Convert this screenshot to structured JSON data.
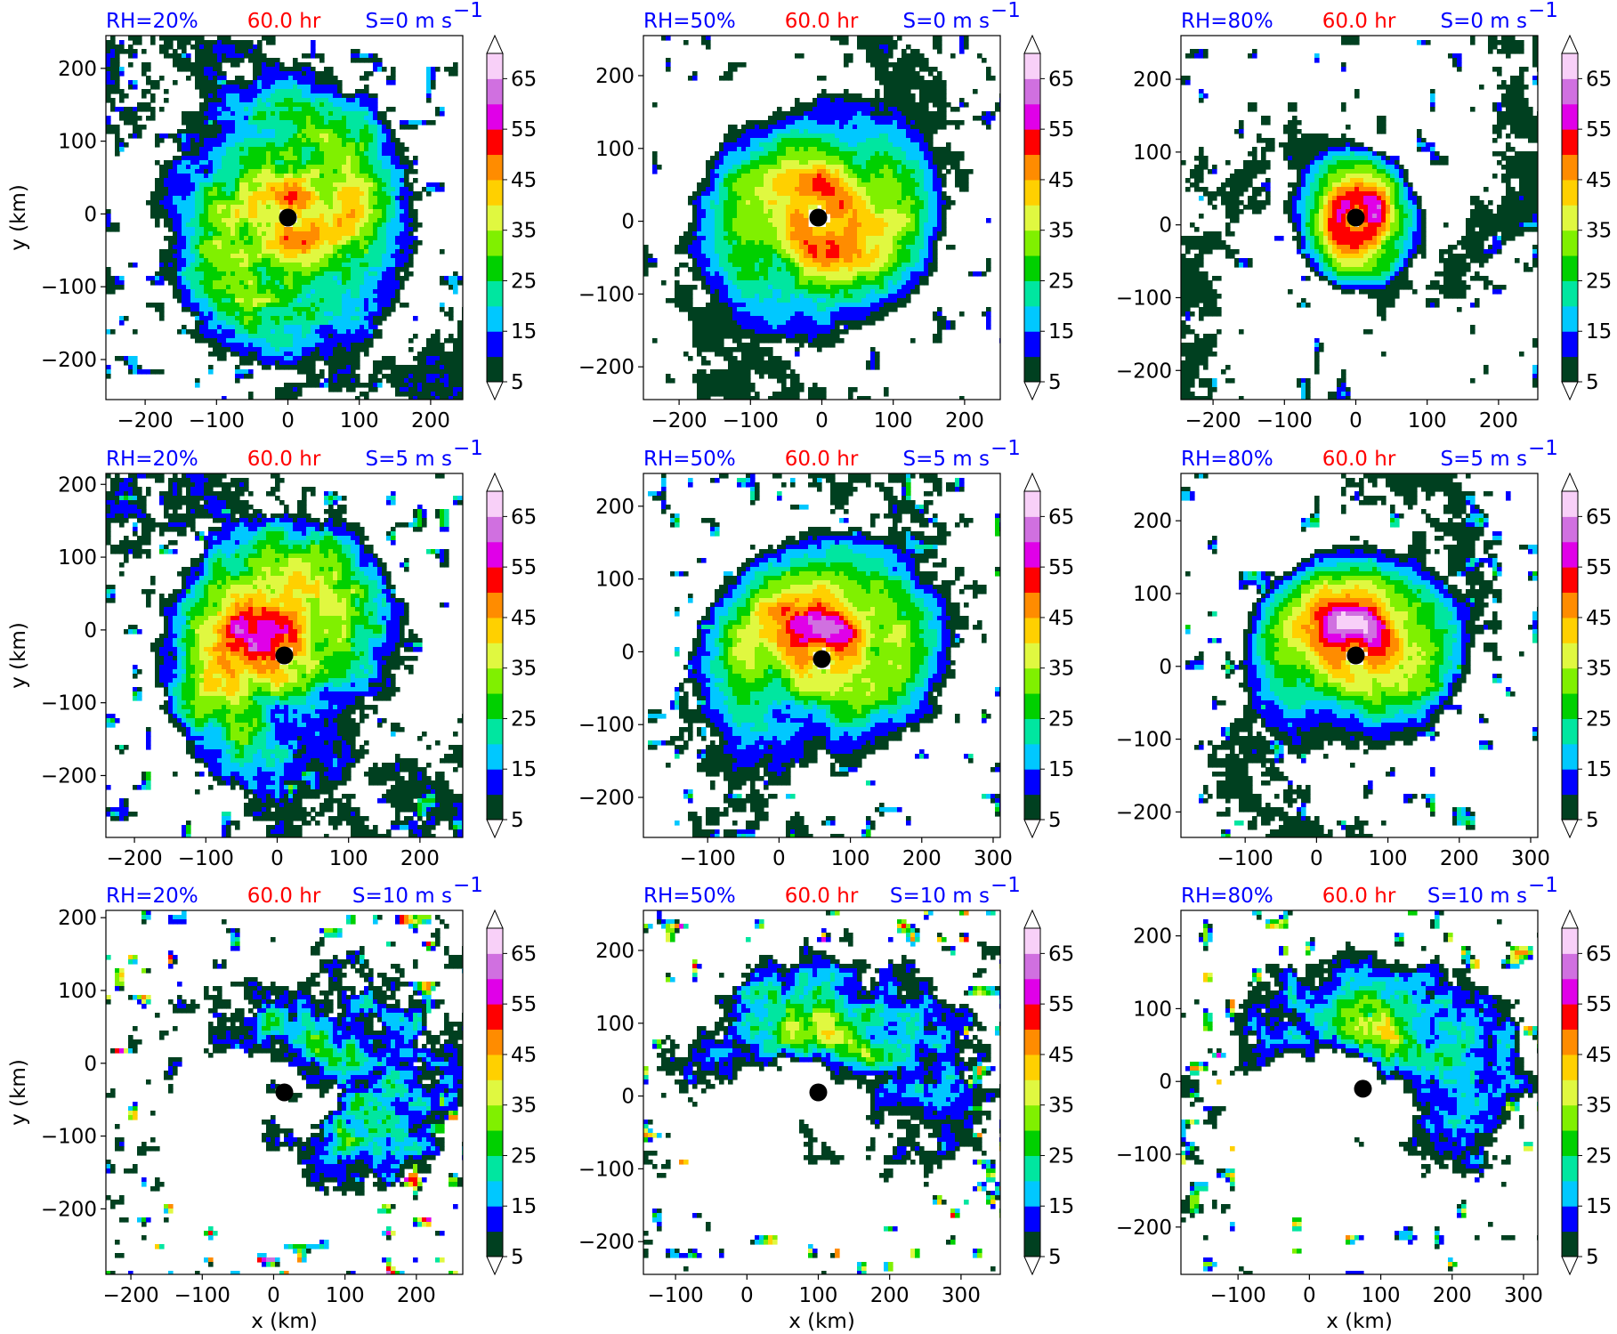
{
  "figure": {
    "common": {
      "time_label": "60.0 hr",
      "xlabel": "x (km)",
      "ylabel": "y (km)"
    },
    "colors": {
      "rh_text": "#0000ff",
      "time_text": "#ff0000",
      "shear_text": "#0000ff",
      "eye_marker": "#000000"
    },
    "colorbar": {
      "levels": [
        5,
        10,
        15,
        20,
        25,
        30,
        35,
        40,
        45,
        50,
        55,
        60,
        65,
        70
      ],
      "colors": [
        "#004020",
        "#0000ff",
        "#00c8ff",
        "#00e6a0",
        "#00d000",
        "#80f000",
        "#e0f840",
        "#ffd000",
        "#ff8c00",
        "#ff0000",
        "#e000e8",
        "#d070e0",
        "#f8d0f8"
      ],
      "tick_labels": [
        "5",
        "15",
        "25",
        "35",
        "45",
        "55",
        "65"
      ],
      "extend": "both"
    }
  },
  "chart_data": [
    {
      "type": "heatmap",
      "row": 0,
      "col": 0,
      "rh_label": "RH=20%",
      "shear_label": "S=0 m s",
      "shear_exp": "−1",
      "xlim": [
        -255,
        245
      ],
      "ylim": [
        -255,
        245
      ],
      "xticks": [
        -200,
        -100,
        0,
        100,
        200
      ],
      "yticks": [
        -200,
        -100,
        0,
        100,
        200
      ],
      "xtick_labels": [
        "−200",
        "−100",
        "0",
        "100",
        "200"
      ],
      "ytick_labels": [
        "−200",
        "−100",
        "0",
        "100",
        "200"
      ],
      "show_xlabel": false,
      "show_ylabel": true,
      "center": [
        0,
        -5
      ],
      "rmw": 18,
      "core_radius": 85,
      "extent_radius": 210,
      "peak": 44,
      "asym": 0.05,
      "asym_dir": 0,
      "spiral_pitch": 1.2,
      "noise": 0.55,
      "outer_cells": 14
    },
    {
      "type": "heatmap",
      "row": 0,
      "col": 1,
      "rh_label": "RH=50%",
      "shear_label": "S=0 m s",
      "shear_exp": "−1",
      "xlim": [
        -250,
        250
      ],
      "ylim": [
        -245,
        255
      ],
      "xticks": [
        -200,
        -100,
        0,
        100,
        200
      ],
      "yticks": [
        -200,
        -100,
        0,
        100,
        200
      ],
      "xtick_labels": [
        "−200",
        "−100",
        "0",
        "100",
        "200"
      ],
      "ytick_labels": [
        "−200",
        "−100",
        "0",
        "100",
        "200"
      ],
      "show_xlabel": false,
      "show_ylabel": false,
      "center": [
        -5,
        5
      ],
      "rmw": 22,
      "core_radius": 105,
      "extent_radius": 190,
      "peak": 47,
      "asym": 0.05,
      "asym_dir": 0,
      "spiral_pitch": 1.1,
      "noise": 0.35,
      "outer_cells": 10
    },
    {
      "type": "heatmap",
      "row": 0,
      "col": 2,
      "rh_label": "RH=80%",
      "shear_label": "S=0 m s",
      "shear_exp": "−1",
      "xlim": [
        -245,
        255
      ],
      "ylim": [
        -240,
        260
      ],
      "xticks": [
        -200,
        -100,
        0,
        100,
        200
      ],
      "yticks": [
        -200,
        -100,
        0,
        100,
        200
      ],
      "xtick_labels": [
        "−200",
        "−100",
        "0",
        "100",
        "200"
      ],
      "ytick_labels": [
        "−200",
        "−100",
        "0",
        "100",
        "200"
      ],
      "show_xlabel": false,
      "show_ylabel": false,
      "center": [
        0,
        10
      ],
      "rmw": 15,
      "core_radius": 60,
      "extent_radius": 105,
      "peak": 55,
      "asym": 0.05,
      "asym_dir": 0,
      "spiral_pitch": 1.0,
      "noise": 0.3,
      "outer_cells": 14
    },
    {
      "type": "heatmap",
      "row": 1,
      "col": 0,
      "rh_label": "RH=20%",
      "shear_label": "S=5 m s",
      "shear_exp": "−1",
      "xlim": [
        -240,
        260
      ],
      "ylim": [
        -285,
        215
      ],
      "xticks": [
        -200,
        -100,
        0,
        100,
        200
      ],
      "yticks": [
        -200,
        -100,
        0,
        100,
        200
      ],
      "xtick_labels": [
        "−200",
        "−100",
        "0",
        "100",
        "200"
      ],
      "ytick_labels": [
        "−200",
        "−100",
        "0",
        "100",
        "200"
      ],
      "show_xlabel": false,
      "show_ylabel": true,
      "center": [
        10,
        -35
      ],
      "rmw": 18,
      "core_radius": 80,
      "extent_radius": 200,
      "peak": 46,
      "asym": 0.45,
      "asym_dir": 2.3,
      "spiral_pitch": 1.2,
      "noise": 0.6,
      "outer_cells": 22
    },
    {
      "type": "heatmap",
      "row": 1,
      "col": 1,
      "rh_label": "RH=50%",
      "shear_label": "S=5 m s",
      "shear_exp": "−1",
      "xlim": [
        -190,
        310
      ],
      "ylim": [
        -255,
        245
      ],
      "xticks": [
        -100,
        0,
        100,
        200,
        300
      ],
      "yticks": [
        -200,
        -100,
        0,
        100,
        200
      ],
      "xtick_labels": [
        "−100",
        "0",
        "100",
        "200",
        "300"
      ],
      "ytick_labels": [
        "−200",
        "−100",
        "0",
        "100",
        "200"
      ],
      "show_xlabel": false,
      "show_ylabel": false,
      "center": [
        60,
        -10
      ],
      "rmw": 20,
      "core_radius": 95,
      "extent_radius": 190,
      "peak": 47,
      "asym": 0.4,
      "asym_dir": 1.6,
      "spiral_pitch": 1.1,
      "noise": 0.4,
      "outer_cells": 20
    },
    {
      "type": "heatmap",
      "row": 1,
      "col": 2,
      "rh_label": "RH=80%",
      "shear_label": "S=5 m s",
      "shear_exp": "−1",
      "xlim": [
        -190,
        310
      ],
      "ylim": [
        -235,
        265
      ],
      "xticks": [
        -100,
        0,
        100,
        200,
        300
      ],
      "yticks": [
        -200,
        -100,
        0,
        100,
        200
      ],
      "xtick_labels": [
        "−100",
        "0",
        "100",
        "200",
        "300"
      ],
      "ytick_labels": [
        "−200",
        "−100",
        "0",
        "100",
        "200"
      ],
      "show_xlabel": false,
      "show_ylabel": false,
      "center": [
        55,
        15
      ],
      "rmw": 20,
      "core_radius": 90,
      "extent_radius": 165,
      "peak": 50,
      "asym": 0.4,
      "asym_dir": 1.6,
      "spiral_pitch": 1.1,
      "noise": 0.35,
      "outer_cells": 22
    },
    {
      "type": "heatmap",
      "row": 2,
      "col": 0,
      "rh_label": "RH=20%",
      "shear_label": "S=10 m s",
      "shear_exp": "−1",
      "xlim": [
        -235,
        265
      ],
      "ylim": [
        -290,
        210
      ],
      "xticks": [
        -200,
        -100,
        0,
        100,
        200
      ],
      "yticks": [
        -200,
        -100,
        0,
        100,
        200
      ],
      "xtick_labels": [
        "−200",
        "−100",
        "0",
        "100",
        "200"
      ],
      "ytick_labels": [
        "−200",
        "−100",
        "0",
        "100",
        "200"
      ],
      "show_xlabel": true,
      "show_ylabel": true,
      "center": [
        15,
        -40
      ],
      "rmw": 40,
      "core_radius": 0,
      "extent_radius": 260,
      "peak": 40,
      "asym": 1.0,
      "asym_dir": 0.5,
      "spiral_pitch": 1.0,
      "noise": 0.8,
      "outer_cells": 45
    },
    {
      "type": "heatmap",
      "row": 2,
      "col": 1,
      "rh_label": "RH=50%",
      "shear_label": "S=10 m s",
      "shear_exp": "−1",
      "xlim": [
        -145,
        355
      ],
      "ylim": [
        -245,
        255
      ],
      "xticks": [
        -100,
        0,
        100,
        200,
        300
      ],
      "yticks": [
        -200,
        -100,
        0,
        100,
        200
      ],
      "xtick_labels": [
        "−100",
        "0",
        "100",
        "200",
        "300"
      ],
      "ytick_labels": [
        "−200",
        "−100",
        "0",
        "100",
        "200"
      ],
      "show_xlabel": true,
      "show_ylabel": false,
      "center": [
        100,
        5
      ],
      "rmw": 40,
      "core_radius": 0,
      "extent_radius": 260,
      "peak": 48,
      "asym": 1.0,
      "asym_dir": 1.2,
      "spiral_pitch": 1.0,
      "noise": 0.6,
      "outer_cells": 40
    },
    {
      "type": "heatmap",
      "row": 2,
      "col": 2,
      "rh_label": "RH=80%",
      "shear_label": "S=10 m s",
      "shear_exp": "−1",
      "xlim": [
        -180,
        320
      ],
      "ylim": [
        -265,
        235
      ],
      "xticks": [
        -100,
        0,
        100,
        200,
        300
      ],
      "yticks": [
        -200,
        -100,
        0,
        100,
        200
      ],
      "xtick_labels": [
        "−100",
        "0",
        "100",
        "200",
        "300"
      ],
      "ytick_labels": [
        "−200",
        "−100",
        "0",
        "100",
        "200"
      ],
      "show_xlabel": true,
      "show_ylabel": false,
      "center": [
        75,
        -10
      ],
      "rmw": 40,
      "core_radius": 0,
      "extent_radius": 250,
      "peak": 50,
      "asym": 1.0,
      "asym_dir": 1.0,
      "spiral_pitch": 1.0,
      "noise": 0.6,
      "outer_cells": 40
    }
  ]
}
